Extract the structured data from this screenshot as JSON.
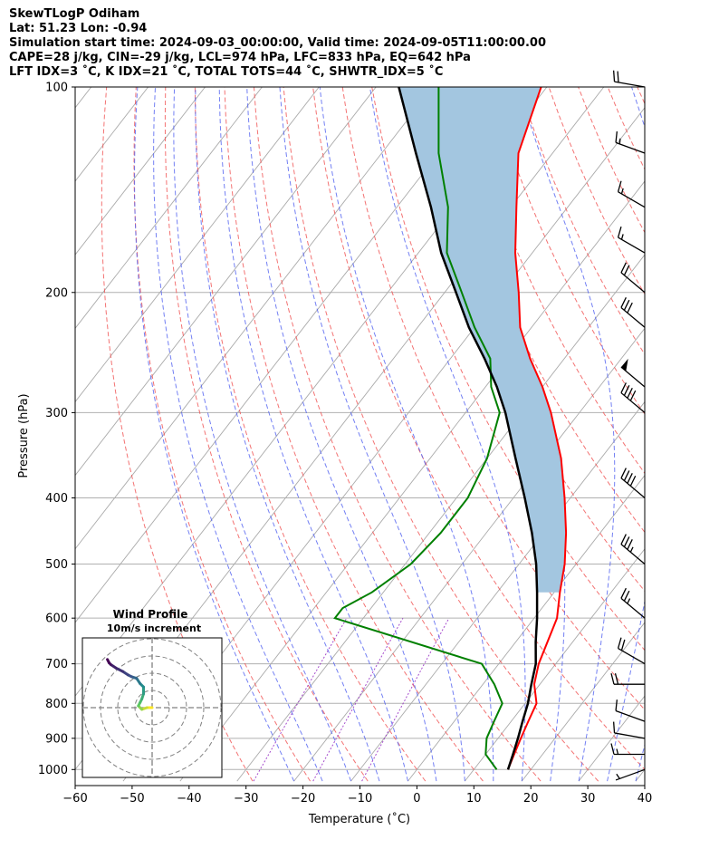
{
  "header": {
    "line1": "SkewTLogP Odiham",
    "line2": "Lat: 51.23   Lon: -0.94",
    "line3": "Simulation start time: 2024-09-03_00:00:00, Valid time: 2024-09-05T11:00:00.00",
    "line4": "CAPE=28 j/kg, CIN=-29 j/kg, LCL=974 hPa, LFC=833 hPa, EQ=642 hPa",
    "line5": "LFT IDX=3 ˚C, K IDX=21 ˚C, TOTAL TOTS=44 ˚C, SHWTR_IDX=5 ˚C"
  },
  "colors": {
    "temperature": "#ff0000",
    "dewpoint": "#008000",
    "parcel": "#000000",
    "cape_fill": "#a3c6e0",
    "isotherm": "#aaaaaa",
    "dry_adiabat": "#f05050",
    "moist_adiabat": "#5060f0",
    "mixing_ratio": "#9020c0"
  },
  "chart_data": [
    {
      "type": "line",
      "subtype": "skew-t log-p",
      "title": "SkewTLogP Odiham",
      "xlabel": "Temperature (˚C)",
      "ylabel": "Pressure (hPa)",
      "xlim": [
        -60,
        40
      ],
      "ylim": [
        1040,
        100
      ],
      "x_ticks": [
        -60,
        -50,
        -40,
        -30,
        -20,
        -10,
        0,
        10,
        20,
        30,
        40
      ],
      "y_ticks": [
        1000,
        900,
        800,
        700,
        600,
        500,
        400,
        300,
        200,
        100
      ],
      "grid": true,
      "series": [
        {
          "name": "Temperature",
          "color": "#ff0000",
          "points": [
            [
              16,
              1000
            ],
            [
              15,
              950
            ],
            [
              14,
              900
            ],
            [
              13,
              850
            ],
            [
              12,
              800
            ],
            [
              9,
              750
            ],
            [
              7,
              700
            ],
            [
              4,
              600
            ],
            [
              1,
              550
            ],
            [
              -2,
              500
            ],
            [
              -6,
              450
            ],
            [
              -11,
              400
            ],
            [
              -17,
              350
            ],
            [
              -25,
              300
            ],
            [
              -30,
              275
            ],
            [
              -36,
              250
            ],
            [
              -42,
              225
            ],
            [
              -47,
              200
            ],
            [
              -53,
              175
            ],
            [
              -59,
              150
            ],
            [
              -66,
              125
            ],
            [
              -71,
              100
            ]
          ]
        },
        {
          "name": "Dewpoint",
          "color": "#008000",
          "points": [
            [
              14,
              1000
            ],
            [
              10,
              950
            ],
            [
              8,
              900
            ],
            [
              7,
              850
            ],
            [
              6,
              800
            ],
            [
              2,
              750
            ],
            [
              -3,
              700
            ],
            [
              -35,
              600
            ],
            [
              -35,
              580
            ],
            [
              -32,
              550
            ],
            [
              -29,
              500
            ],
            [
              -28,
              450
            ],
            [
              -28,
              400
            ],
            [
              -30,
              350
            ],
            [
              -34,
              300
            ],
            [
              -39,
              275
            ],
            [
              -43,
              250
            ],
            [
              -50,
              225
            ],
            [
              -57,
              200
            ],
            [
              -65,
              175
            ],
            [
              -71,
              150
            ],
            [
              -80,
              125
            ],
            [
              -89,
              100
            ]
          ]
        },
        {
          "name": "Parcel",
          "color": "#000000",
          "points": [
            [
              16,
              1000
            ],
            [
              14.8,
              950
            ],
            [
              13.5,
              900
            ],
            [
              12,
              850
            ],
            [
              10.5,
              800
            ],
            [
              8.5,
              750
            ],
            [
              6.5,
              700
            ],
            [
              3.5,
              650
            ],
            [
              0.5,
              600
            ],
            [
              -3,
              550
            ],
            [
              -7,
              500
            ],
            [
              -12,
              450
            ],
            [
              -18,
              400
            ],
            [
              -25,
              350
            ],
            [
              -33,
              300
            ],
            [
              -38,
              275
            ],
            [
              -44,
              250
            ],
            [
              -51,
              225
            ],
            [
              -58,
              200
            ],
            [
              -66,
              175
            ],
            [
              -74,
              150
            ],
            [
              -84,
              125
            ],
            [
              -96,
              100
            ]
          ]
        }
      ],
      "wind_barbs": [
        {
          "pressure": 1000,
          "speed": 5,
          "direction": 250
        },
        {
          "pressure": 950,
          "speed": 15,
          "direction": 270
        },
        {
          "pressure": 900,
          "speed": 10,
          "direction": 280
        },
        {
          "pressure": 850,
          "speed": 10,
          "direction": 290
        },
        {
          "pressure": 750,
          "speed": 20,
          "direction": 270
        },
        {
          "pressure": 700,
          "speed": 20,
          "direction": 300
        },
        {
          "pressure": 600,
          "speed": 25,
          "direction": 310
        },
        {
          "pressure": 500,
          "speed": 35,
          "direction": 310
        },
        {
          "pressure": 400,
          "speed": 40,
          "direction": 310
        },
        {
          "pressure": 300,
          "speed": 40,
          "direction": 310
        },
        {
          "pressure": 275,
          "speed": 50,
          "direction": 310
        },
        {
          "pressure": 225,
          "speed": 30,
          "direction": 310
        },
        {
          "pressure": 200,
          "speed": 20,
          "direction": 310
        },
        {
          "pressure": 175,
          "speed": 15,
          "direction": 300
        },
        {
          "pressure": 150,
          "speed": 15,
          "direction": 300
        },
        {
          "pressure": 125,
          "speed": 15,
          "direction": 290
        },
        {
          "pressure": 100,
          "speed": 20,
          "direction": 280
        }
      ]
    },
    {
      "type": "line",
      "subtype": "hodograph",
      "title": "Wind Profile",
      "subtitle": "10m/s increment",
      "rings_ms": [
        10,
        20,
        30,
        40
      ],
      "points_uv": [
        [
          0,
          0
        ],
        [
          -3,
          0
        ],
        [
          -6,
          -1
        ],
        [
          -8,
          1
        ],
        [
          -7,
          3
        ],
        [
          -6,
          5
        ],
        [
          -5,
          8
        ],
        [
          -5,
          12
        ],
        [
          -7,
          14
        ],
        [
          -9,
          17
        ],
        [
          -12,
          18
        ],
        [
          -14,
          19
        ],
        [
          -17,
          21
        ],
        [
          -21,
          23
        ],
        [
          -24,
          25
        ],
        [
          -25,
          26
        ],
        [
          -26,
          28
        ]
      ]
    }
  ]
}
